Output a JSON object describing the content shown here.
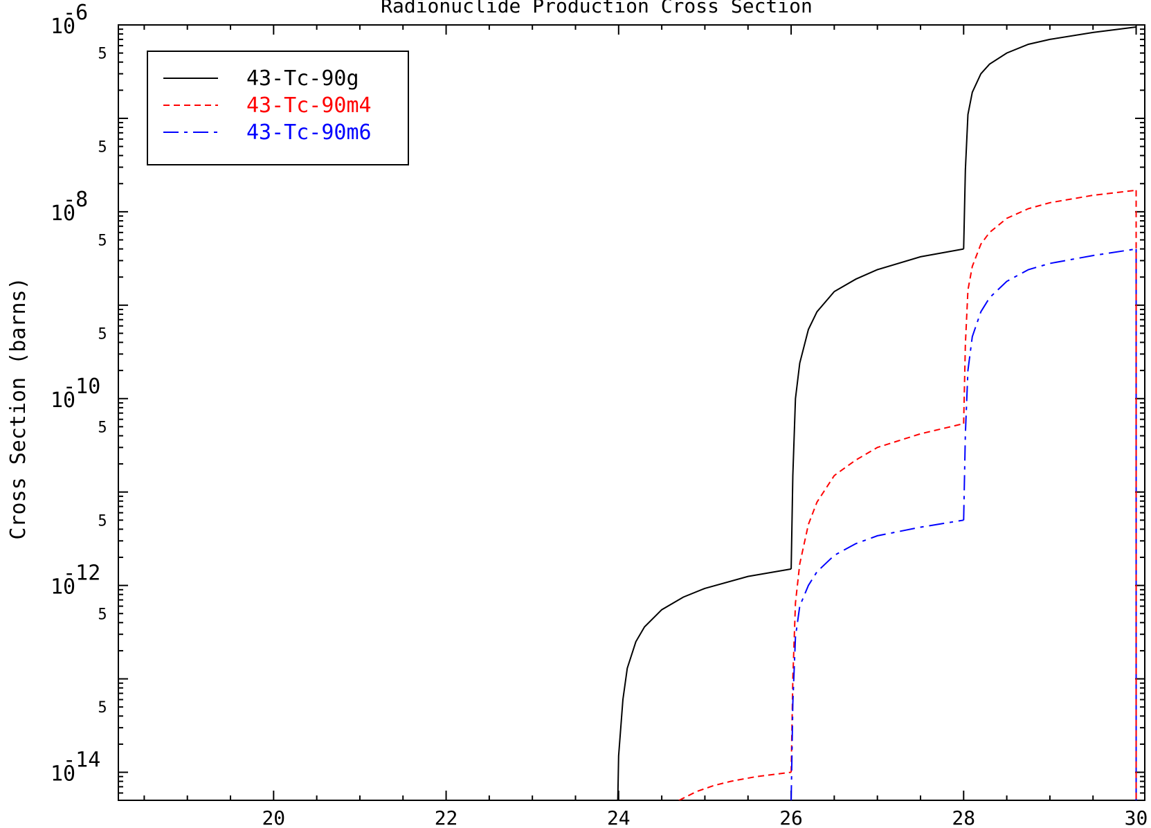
{
  "chart_data": {
    "type": "line",
    "title": "Radionuclide Production Cross Section",
    "xlabel": "",
    "ylabel": "Cross Section (barns)",
    "xlim": [
      18.2,
      30.1
    ],
    "ylim_log10": [
      -14.3,
      -6.0
    ],
    "y_scale": "log",
    "grid": false,
    "legend_position": "top-left",
    "x_ticks": [
      {
        "value": 20,
        "label": "20"
      },
      {
        "value": 22,
        "label": "22"
      },
      {
        "value": 24,
        "label": "24"
      },
      {
        "value": 26,
        "label": "26"
      },
      {
        "value": 28,
        "label": "28"
      },
      {
        "value": 30,
        "label": "30"
      }
    ],
    "y_decades": [
      {
        "log10": -6,
        "base": "10",
        "exp": "-6"
      },
      {
        "log10": -8,
        "base": "10",
        "exp": "-8"
      },
      {
        "log10": -10,
        "base": "10",
        "exp": "-10"
      },
      {
        "log10": -12,
        "base": "10",
        "exp": "-12"
      },
      {
        "log10": -14,
        "base": "10",
        "exp": "-14"
      }
    ],
    "y_minor_labels": [
      {
        "value": 5e-07,
        "label": "5"
      },
      {
        "value": 5e-08,
        "label": "5"
      },
      {
        "value": 5e-09,
        "label": "5"
      },
      {
        "value": 5e-10,
        "label": "5"
      },
      {
        "value": 5e-11,
        "label": "5"
      },
      {
        "value": 5e-12,
        "label": "5"
      },
      {
        "value": 5e-13,
        "label": "5"
      },
      {
        "value": 5e-14,
        "label": "5"
      }
    ],
    "series": [
      {
        "name": "43-Tc-90g",
        "color": "#000000",
        "dash": "solid",
        "segments": [
          {
            "x": [
              23.99,
              24.0,
              24.05,
              24.1,
              24.2,
              24.3,
              24.5,
              24.75,
              25.0,
              25.5,
              26.0
            ],
            "y": [
              5e-15,
              1.5e-14,
              6e-14,
              1.3e-13,
              2.5e-13,
              3.6e-13,
              5.5e-13,
              7.5e-13,
              9.3e-13,
              1.25e-12,
              1.5e-12
            ]
          },
          {
            "x": [
              26.0,
              26.02,
              26.05,
              26.1,
              26.2,
              26.3,
              26.5,
              26.75,
              27.0,
              27.5,
              28.0
            ],
            "y": [
              1.5e-12,
              1.5e-11,
              1e-10,
              2.4e-10,
              5.5e-10,
              8.5e-10,
              1.4e-09,
              1.9e-09,
              2.4e-09,
              3.3e-09,
              4e-09
            ]
          },
          {
            "x": [
              28.0,
              28.02,
              28.05,
              28.1,
              28.2,
              28.3,
              28.5,
              28.75,
              29.0,
              29.5,
              30.0
            ],
            "y": [
              4e-09,
              2.8e-08,
              1.1e-07,
              1.9e-07,
              3e-07,
              3.8e-07,
              5e-07,
              6.2e-07,
              7e-07,
              8.3e-07,
              9.5e-07
            ]
          }
        ]
      },
      {
        "name": "43-Tc-90m4",
        "color": "#ff0000",
        "dash": "dashed",
        "segments": [
          {
            "x": [
              24.7,
              24.9,
              25.1,
              25.3,
              25.6,
              26.0
            ],
            "y": [
              5e-15,
              6.2e-15,
              7.2e-15,
              8e-15,
              9e-15,
              1e-14
            ]
          },
          {
            "x": [
              26.0,
              26.02,
              26.05,
              26.1,
              26.2,
              26.3,
              26.5,
              26.75,
              27.0,
              27.5,
              28.0
            ],
            "y": [
              1e-14,
              1e-13,
              6.5e-13,
              1.7e-12,
              4.5e-12,
              7.8e-12,
              1.5e-11,
              2.2e-11,
              3e-11,
              4.2e-11,
              5.4e-11
            ]
          },
          {
            "x": [
              28.0,
              28.02,
              28.05,
              28.1,
              28.2,
              28.3,
              28.5,
              28.75,
              29.0,
              29.5,
              30.0
            ],
            "y": [
              5.4e-11,
              3.8e-10,
              1.45e-09,
              2.6e-09,
              4.5e-09,
              6e-09,
              8.5e-09,
              1.08e-08,
              1.25e-08,
              1.5e-08,
              1.7e-08
            ]
          }
        ]
      },
      {
        "name": "43-Tc-90m6",
        "color": "#0000ff",
        "dash": "dashdot",
        "segments": [
          {
            "x": [
              26.0,
              26.02,
              26.05,
              26.1,
              26.2,
              26.3,
              26.5,
              26.75,
              27.0,
              27.5,
              28.0
            ],
            "y": [
              5e-15,
              5.5e-14,
              2.8e-13,
              6e-13,
              1e-12,
              1.4e-12,
              2.1e-12,
              2.8e-12,
              3.4e-12,
              4.2e-12,
              5e-12
            ]
          },
          {
            "x": [
              28.0,
              28.02,
              28.05,
              28.1,
              28.2,
              28.3,
              28.5,
              28.75,
              29.0,
              29.5,
              30.0
            ],
            "y": [
              5e-12,
              4.2e-11,
              2e-10,
              4.6e-10,
              8.5e-10,
              1.2e-09,
              1.8e-09,
              2.4e-09,
              2.8e-09,
              3.4e-09,
              4e-09
            ]
          }
        ],
        "drop_at_x": 30.0
      }
    ]
  }
}
